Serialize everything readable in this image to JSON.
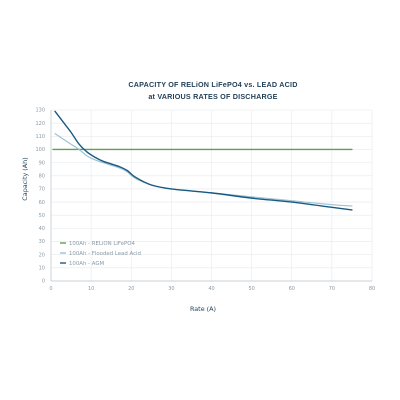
{
  "chart_data": {
    "type": "line",
    "title": "CAPACITY OF RELiON LiFePO4 vs. LEAD ACID",
    "subtitle": "at VARIOUS RATES OF DISCHARGE",
    "xlabel": "Rate (A)",
    "ylabel": "Capacity (Ah)",
    "xlim": [
      0,
      80
    ],
    "ylim": [
      0,
      130
    ],
    "x_ticks": [
      "0",
      "10",
      "20",
      "30",
      "40",
      "50",
      "60",
      "70",
      "80"
    ],
    "y_ticks": [
      "0",
      "10",
      "20",
      "30",
      "40",
      "50",
      "60",
      "70",
      "80",
      "90",
      "100",
      "110",
      "120",
      "130"
    ],
    "grid": true,
    "legend_position": "lower-left",
    "series": [
      {
        "name": "100Ah - RELiON LiFePO4",
        "color": "#5fa04e",
        "x": [
          0.5,
          75
        ],
        "y": [
          100,
          100
        ]
      },
      {
        "name": "100Ah - Flooded Lead Acid",
        "color": "#9cc2d6",
        "x": [
          1,
          3,
          5,
          7,
          9,
          11,
          13,
          15,
          17,
          19,
          21,
          25,
          30,
          40,
          50,
          60,
          70,
          75
        ],
        "y": [
          112,
          108,
          104,
          100,
          95,
          92,
          90,
          88,
          86,
          83,
          78,
          73,
          70,
          67,
          64,
          61,
          58,
          57
        ]
      },
      {
        "name": "100Ah - AGM",
        "color": "#1a5a80",
        "x": [
          1,
          3,
          5,
          7,
          9,
          11,
          13,
          15,
          17,
          19,
          21,
          25,
          30,
          40,
          50,
          60,
          70,
          75
        ],
        "y": [
          129,
          121,
          113,
          104,
          98,
          94,
          91,
          89,
          87,
          84,
          79,
          73,
          70,
          67,
          63,
          60,
          56,
          54
        ]
      }
    ]
  }
}
